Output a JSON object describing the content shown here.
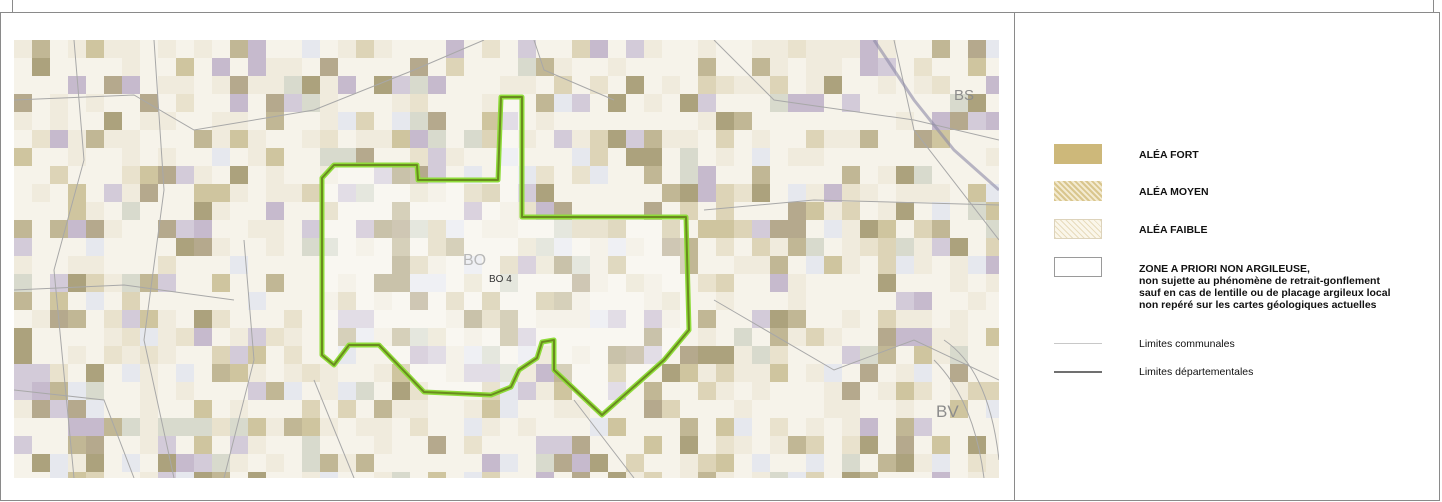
{
  "map": {
    "parcel_label": "BO 4",
    "section_label": "BO",
    "corner_labels": {
      "top_right": "BS",
      "bottom_right": "BV"
    }
  },
  "legend": {
    "items": [
      {
        "label": "ALÉA FORT",
        "color": "#cdb87a"
      },
      {
        "label": "ALÉA MOYEN",
        "color": "#d9c68e"
      },
      {
        "label": "ALÉA FAIBLE",
        "color": "#e8dcbd"
      },
      {
        "label": "ZONE A PRIORI NON ARGILEUSE,",
        "color": "#ffffff",
        "lines": [
          "non sujette au phénomène de retrait-gonflement",
          "sauf en cas de lentille ou de placage argileux local",
          "non repéré sur les cartes géologiques actuelles"
        ]
      }
    ],
    "lines": [
      {
        "label": "Limites communales"
      },
      {
        "label": "Limites départementales"
      }
    ]
  },
  "colors": {
    "parcel_outline": "#6a8a1f",
    "parcel_halo": "#8fdc3a",
    "tile_palette": [
      "#c8bd92",
      "#b7ad86",
      "#d8cfae",
      "#e6dfc8",
      "#cdc4d6",
      "#bdb0c8",
      "#9f946a",
      "#efeadb",
      "#f6f3ea",
      "#d2d6c8",
      "#a99c7c",
      "#e3e6ee"
    ]
  }
}
